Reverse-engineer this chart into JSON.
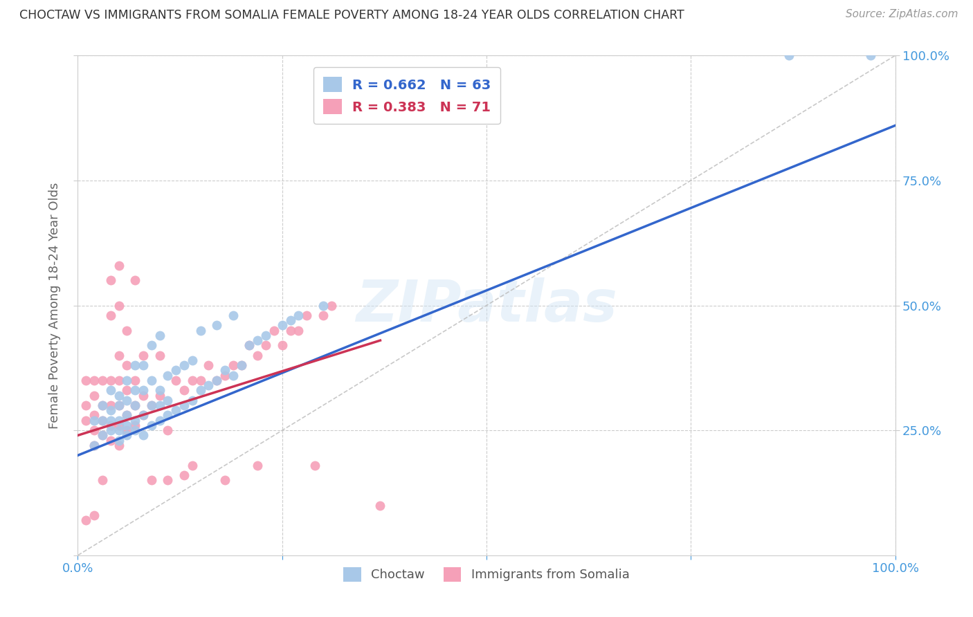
{
  "title": "CHOCTAW VS IMMIGRANTS FROM SOMALIA FEMALE POVERTY AMONG 18-24 YEAR OLDS CORRELATION CHART",
  "source": "Source: ZipAtlas.com",
  "ylabel": "Female Poverty Among 18-24 Year Olds",
  "watermark": "ZIPatlas",
  "choctaw_R": 0.662,
  "choctaw_N": 63,
  "somalia_R": 0.383,
  "somalia_N": 71,
  "choctaw_color": "#a8c8e8",
  "somalia_color": "#f5a0b8",
  "choctaw_line_color": "#3366cc",
  "somalia_line_color": "#cc3355",
  "diagonal_color": "#bbbbbb",
  "background_color": "#ffffff",
  "grid_color": "#cccccc",
  "right_axis_color": "#4499dd",
  "title_color": "#333333",
  "xlim": [
    0,
    1.0
  ],
  "ylim": [
    0,
    1.0
  ],
  "choctaw_line_x0": 0.0,
  "choctaw_line_y0": 0.2,
  "choctaw_line_x1": 1.0,
  "choctaw_line_y1": 0.86,
  "somalia_line_x0": 0.0,
  "somalia_line_y0": 0.24,
  "somalia_line_x1": 0.37,
  "somalia_line_y1": 0.43,
  "choctaw_x": [
    0.02,
    0.02,
    0.03,
    0.03,
    0.03,
    0.04,
    0.04,
    0.04,
    0.04,
    0.05,
    0.05,
    0.05,
    0.05,
    0.05,
    0.06,
    0.06,
    0.06,
    0.06,
    0.06,
    0.07,
    0.07,
    0.07,
    0.07,
    0.07,
    0.08,
    0.08,
    0.08,
    0.08,
    0.09,
    0.09,
    0.09,
    0.09,
    0.1,
    0.1,
    0.1,
    0.1,
    0.11,
    0.11,
    0.11,
    0.12,
    0.12,
    0.13,
    0.13,
    0.14,
    0.14,
    0.15,
    0.15,
    0.16,
    0.17,
    0.17,
    0.18,
    0.19,
    0.19,
    0.2,
    0.21,
    0.22,
    0.23,
    0.25,
    0.26,
    0.27,
    0.3,
    0.87,
    0.97
  ],
  "choctaw_y": [
    0.22,
    0.27,
    0.24,
    0.27,
    0.3,
    0.25,
    0.27,
    0.29,
    0.33,
    0.23,
    0.25,
    0.27,
    0.3,
    0.32,
    0.24,
    0.26,
    0.28,
    0.31,
    0.35,
    0.25,
    0.27,
    0.3,
    0.33,
    0.38,
    0.24,
    0.28,
    0.33,
    0.38,
    0.26,
    0.3,
    0.35,
    0.42,
    0.27,
    0.3,
    0.33,
    0.44,
    0.28,
    0.31,
    0.36,
    0.29,
    0.37,
    0.3,
    0.38,
    0.31,
    0.39,
    0.33,
    0.45,
    0.34,
    0.35,
    0.46,
    0.37,
    0.36,
    0.48,
    0.38,
    0.42,
    0.43,
    0.44,
    0.46,
    0.47,
    0.48,
    0.5,
    1.0,
    1.0
  ],
  "somalia_x": [
    0.01,
    0.01,
    0.01,
    0.01,
    0.02,
    0.02,
    0.02,
    0.02,
    0.02,
    0.02,
    0.03,
    0.03,
    0.03,
    0.03,
    0.03,
    0.04,
    0.04,
    0.04,
    0.04,
    0.04,
    0.04,
    0.05,
    0.05,
    0.05,
    0.05,
    0.05,
    0.05,
    0.05,
    0.06,
    0.06,
    0.06,
    0.06,
    0.06,
    0.07,
    0.07,
    0.07,
    0.07,
    0.08,
    0.08,
    0.08,
    0.09,
    0.09,
    0.1,
    0.1,
    0.11,
    0.11,
    0.12,
    0.13,
    0.13,
    0.14,
    0.14,
    0.15,
    0.16,
    0.17,
    0.18,
    0.18,
    0.19,
    0.2,
    0.21,
    0.22,
    0.22,
    0.23,
    0.24,
    0.25,
    0.26,
    0.27,
    0.28,
    0.29,
    0.3,
    0.31,
    0.37
  ],
  "somalia_y": [
    0.27,
    0.3,
    0.35,
    0.07,
    0.22,
    0.25,
    0.28,
    0.32,
    0.35,
    0.08,
    0.24,
    0.27,
    0.3,
    0.35,
    0.15,
    0.23,
    0.26,
    0.3,
    0.35,
    0.48,
    0.55,
    0.22,
    0.26,
    0.3,
    0.35,
    0.4,
    0.5,
    0.58,
    0.25,
    0.28,
    0.33,
    0.38,
    0.45,
    0.26,
    0.3,
    0.35,
    0.55,
    0.28,
    0.32,
    0.4,
    0.3,
    0.15,
    0.32,
    0.4,
    0.25,
    0.15,
    0.35,
    0.33,
    0.16,
    0.35,
    0.18,
    0.35,
    0.38,
    0.35,
    0.36,
    0.15,
    0.38,
    0.38,
    0.42,
    0.4,
    0.18,
    0.42,
    0.45,
    0.42,
    0.45,
    0.45,
    0.48,
    0.18,
    0.48,
    0.5,
    0.1
  ]
}
